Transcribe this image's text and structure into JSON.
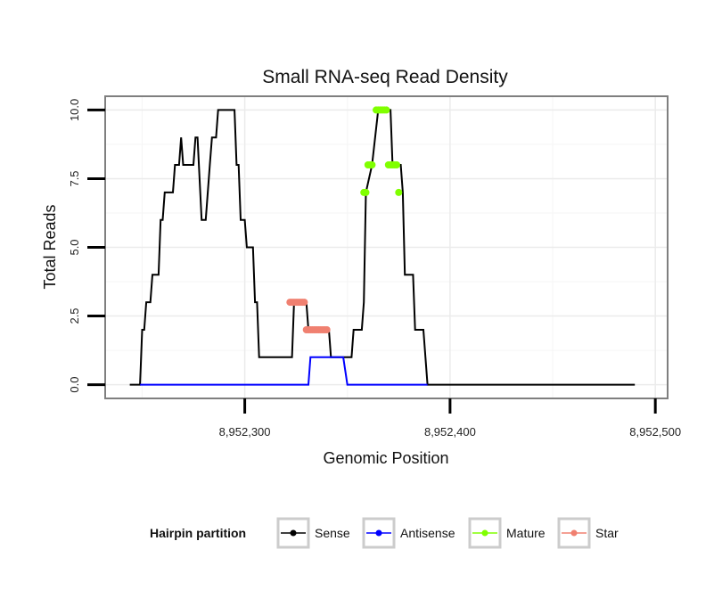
{
  "chart_data": {
    "type": "line",
    "title": "Small RNA-seq Read Density",
    "xlabel": "Genomic Position",
    "ylabel": "Total Reads",
    "xlim": [
      8952232,
      8952506
    ],
    "ylim": [
      -0.5,
      10.5
    ],
    "x_ticks": [
      8952300,
      8952400,
      8952500
    ],
    "x_tick_labels": [
      "8,952,300",
      "8,952,400",
      "8,952,500"
    ],
    "y_ticks": [
      0,
      2.5,
      5,
      7.5,
      10
    ],
    "y_tick_labels": [
      "0.0",
      "2.5",
      "5.0",
      "7.5",
      "10.0"
    ],
    "grid": true,
    "legend": {
      "title": "Hairpin partition",
      "position": "bottom",
      "entries": [
        "Sense",
        "Antisense",
        "Mature",
        "Star"
      ]
    },
    "series": [
      {
        "name": "Sense",
        "color": "#000000",
        "marker": "line",
        "points": [
          [
            8952244,
            0
          ],
          [
            8952249,
            0
          ],
          [
            8952250,
            2
          ],
          [
            8952251,
            2
          ],
          [
            8952252,
            3
          ],
          [
            8952254,
            3
          ],
          [
            8952255,
            4
          ],
          [
            8952258,
            4
          ],
          [
            8952259,
            6
          ],
          [
            8952260,
            6
          ],
          [
            8952261,
            7
          ],
          [
            8952265,
            7
          ],
          [
            8952266,
            8
          ],
          [
            8952268,
            8
          ],
          [
            8952269,
            9
          ],
          [
            8952270,
            8
          ],
          [
            8952275,
            8
          ],
          [
            8952276,
            9
          ],
          [
            8952277,
            9
          ],
          [
            8952279,
            6
          ],
          [
            8952281,
            6
          ],
          [
            8952283,
            8
          ],
          [
            8952284,
            9
          ],
          [
            8952286,
            9
          ],
          [
            8952287,
            10
          ],
          [
            8952295,
            10
          ],
          [
            8952296,
            8
          ],
          [
            8952297,
            8
          ],
          [
            8952298,
            6
          ],
          [
            8952300,
            6
          ],
          [
            8952301,
            5
          ],
          [
            8952304,
            5
          ],
          [
            8952305,
            3
          ],
          [
            8952306,
            3
          ],
          [
            8952307,
            1
          ],
          [
            8952323,
            1
          ],
          [
            8952324,
            3
          ],
          [
            8952330,
            3
          ],
          [
            8952331,
            2
          ],
          [
            8952341,
            2
          ],
          [
            8952342,
            1
          ],
          [
            8952352,
            1
          ],
          [
            8952353,
            2
          ],
          [
            8952357,
            2
          ],
          [
            8952358,
            3
          ],
          [
            8952359,
            7
          ],
          [
            8952362,
            8
          ],
          [
            8952365,
            10
          ],
          [
            8952371,
            10
          ],
          [
            8952372,
            8
          ],
          [
            8952376,
            8
          ],
          [
            8952377,
            7
          ],
          [
            8952378,
            4
          ],
          [
            8952382,
            4
          ],
          [
            8952383,
            2
          ],
          [
            8952387,
            2
          ],
          [
            8952388,
            1
          ],
          [
            8952389,
            0
          ],
          [
            8952490,
            0
          ]
        ]
      },
      {
        "name": "Antisense",
        "color": "#0000ff",
        "marker": "line",
        "points": [
          [
            8952249,
            0
          ],
          [
            8952331,
            0
          ],
          [
            8952332,
            1
          ],
          [
            8952348,
            1
          ],
          [
            8952350,
            0
          ],
          [
            8952389,
            0
          ]
        ]
      },
      {
        "name": "Mature",
        "color": "#80ff00",
        "marker": "point",
        "points": [
          [
            8952358,
            7
          ],
          [
            8952359,
            7
          ],
          [
            8952360,
            8
          ],
          [
            8952361,
            8
          ],
          [
            8952362,
            8
          ],
          [
            8952364,
            10
          ],
          [
            8952365,
            10
          ],
          [
            8952366,
            10
          ],
          [
            8952367,
            10
          ],
          [
            8952368,
            10
          ],
          [
            8952369,
            10
          ],
          [
            8952370,
            8
          ],
          [
            8952371,
            8
          ],
          [
            8952372,
            8
          ],
          [
            8952373,
            8
          ],
          [
            8952374,
            8
          ],
          [
            8952375,
            7
          ]
        ]
      },
      {
        "name": "Star",
        "color": "#f08070",
        "marker": "point",
        "points": [
          [
            8952322,
            3
          ],
          [
            8952323,
            3
          ],
          [
            8952324,
            3
          ],
          [
            8952325,
            3
          ],
          [
            8952326,
            3
          ],
          [
            8952327,
            3
          ],
          [
            8952328,
            3
          ],
          [
            8952329,
            3
          ],
          [
            8952330,
            2
          ],
          [
            8952331,
            2
          ],
          [
            8952332,
            2
          ],
          [
            8952333,
            2
          ],
          [
            8952334,
            2
          ],
          [
            8952335,
            2
          ],
          [
            8952336,
            2
          ],
          [
            8952337,
            2
          ],
          [
            8952338,
            2
          ],
          [
            8952339,
            2
          ],
          [
            8952340,
            2
          ]
        ]
      }
    ]
  }
}
